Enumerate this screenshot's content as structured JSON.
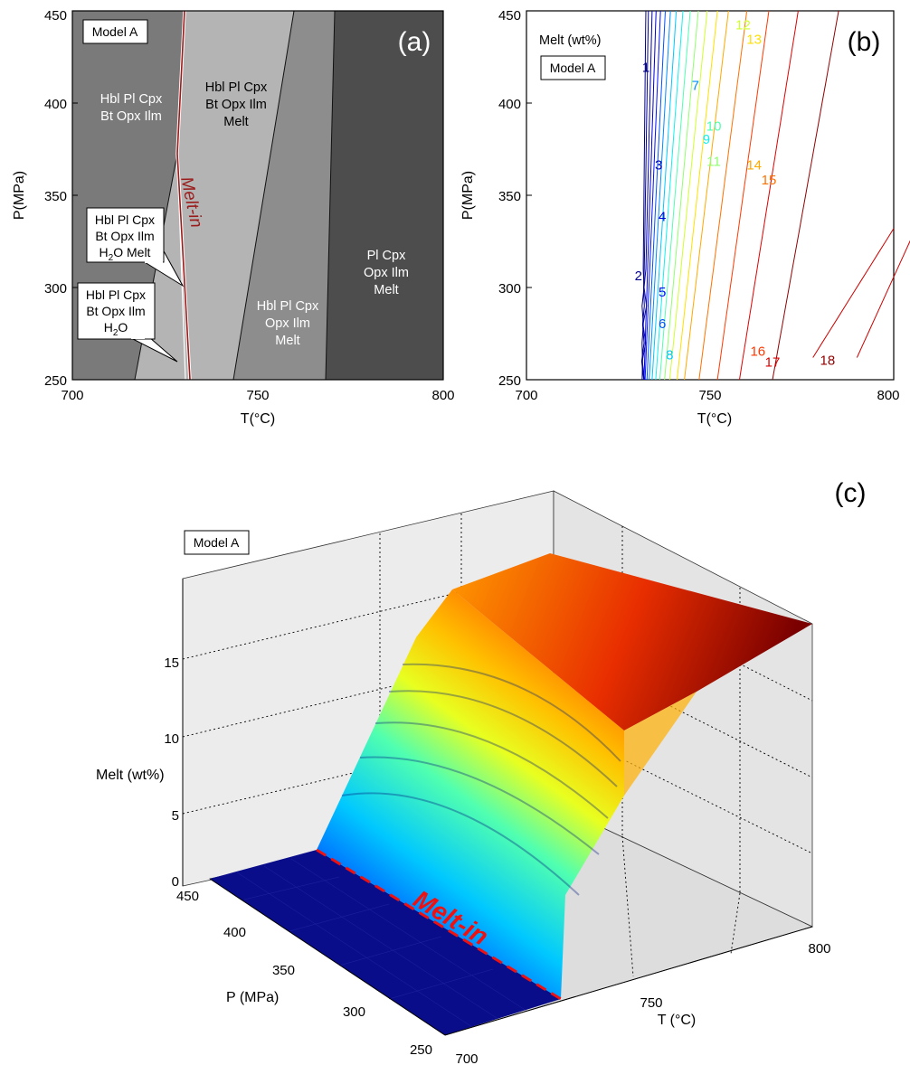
{
  "chart_data": [
    {
      "panel": "(a)",
      "type": "phase-diagram",
      "model_label": "Model A",
      "xlabel": "T(°C)",
      "ylabel": "P(MPa)",
      "xlim": [
        700,
        800
      ],
      "ylim": [
        250,
        450
      ],
      "xticks": [
        "700",
        "750",
        "800"
      ],
      "yticks": [
        "250",
        "300",
        "350",
        "400",
        "450"
      ],
      "fields": [
        {
          "lines": [
            "Hbl Pl Cpx",
            "Bt Opx Ilm"
          ],
          "color": "#7a7a7a"
        },
        {
          "lines": [
            "Hbl Pl Cpx",
            "Bt Opx Ilm",
            "Melt"
          ],
          "color": "#b4b4b4"
        },
        {
          "lines": [
            "Hbl Pl Cpx",
            "Opx Ilm",
            "Melt"
          ],
          "color": "#8d8d8d"
        },
        {
          "lines": [
            "Pl Cpx",
            "Opx Ilm",
            "Melt"
          ],
          "color": "#4d4d4d"
        }
      ],
      "callouts": [
        {
          "lines": [
            "Hbl Pl Cpx",
            "Bt Opx Ilm",
            "H2O Melt"
          ]
        },
        {
          "lines": [
            "Hbl Pl Cpx",
            "Bt Opx Ilm",
            "H2O"
          ]
        }
      ],
      "melt_in_label": "Melt-in",
      "melt_in_line": [
        [
          733,
          250
        ],
        [
          731,
          300
        ],
        [
          729,
          350
        ],
        [
          728,
          370
        ],
        [
          730,
          450
        ]
      ],
      "accent_color": "#9b1b1b"
    },
    {
      "panel": "(b)",
      "type": "contour",
      "title": "Melt (wt%)",
      "model_label": "Model A",
      "xlabel": "T(°C)",
      "ylabel": "P(MPa)",
      "xlim": [
        700,
        800
      ],
      "ylim": [
        250,
        450
      ],
      "xticks": [
        "700",
        "750",
        "800"
      ],
      "yticks": [
        "250",
        "300",
        "350",
        "400",
        "450"
      ],
      "contour_labels": [
        {
          "text": "1",
          "T": 732.5,
          "P": 417
        },
        {
          "text": "2",
          "T": 730.5,
          "P": 304
        },
        {
          "text": "3",
          "T": 736,
          "P": 364
        },
        {
          "text": "4",
          "T": 737,
          "P": 336
        },
        {
          "text": "5",
          "T": 737,
          "P": 295
        },
        {
          "text": "6",
          "T": 737,
          "P": 278
        },
        {
          "text": "7",
          "T": 746,
          "P": 407
        },
        {
          "text": "8",
          "T": 739,
          "P": 261
        },
        {
          "text": "9",
          "T": 749,
          "P": 378
        },
        {
          "text": "10",
          "T": 751,
          "P": 385
        },
        {
          "text": "11",
          "T": 751,
          "P": 366
        },
        {
          "text": "12",
          "T": 759,
          "P": 440
        },
        {
          "text": "13",
          "T": 762,
          "P": 432
        },
        {
          "text": "14",
          "T": 762,
          "P": 364
        },
        {
          "text": "15",
          "T": 766,
          "P": 356
        },
        {
          "text": "16",
          "T": 763,
          "P": 263
        },
        {
          "text": "17",
          "T": 767,
          "P": 257
        },
        {
          "text": "18",
          "T": 782,
          "P": 258
        }
      ]
    },
    {
      "panel": "(c)",
      "type": "surface",
      "model_label": "Model A",
      "zlabel": "Melt (wt%)",
      "xlabel": "T (°C)",
      "ylabel": "P (MPa)",
      "zticks": [
        "0",
        "5",
        "10",
        "15"
      ],
      "xticks": [
        "700",
        "750",
        "800"
      ],
      "yticks": [
        "250",
        "300",
        "350",
        "400",
        "450"
      ],
      "zlim": [
        0,
        18
      ],
      "melt_in_label": "Melt-in",
      "accent_color": "#ee1111"
    }
  ],
  "panel_labels": [
    "(a)",
    "(b)",
    "(c)"
  ]
}
